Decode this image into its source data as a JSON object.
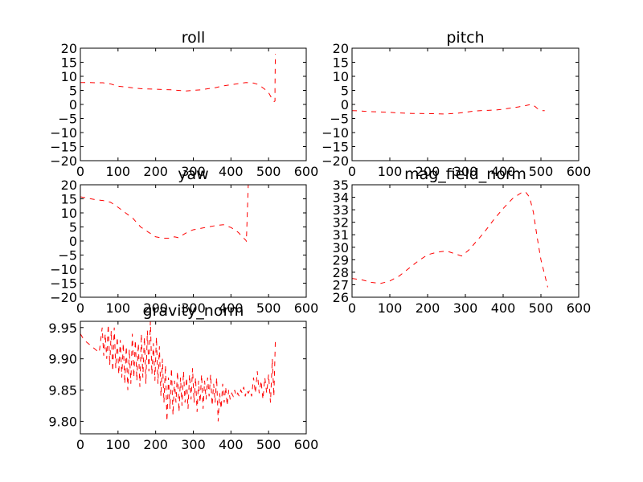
{
  "figure": {
    "background": "#ffffff"
  },
  "chart_data": [
    {
      "type": "line",
      "title": "roll",
      "xlabel": "",
      "ylabel": "",
      "xlim": [
        0,
        600
      ],
      "ylim": [
        -20,
        20
      ],
      "x_ticks": [
        0,
        100,
        200,
        300,
        400,
        500,
        600
      ],
      "y_ticks": [
        -20,
        -15,
        -10,
        -5,
        0,
        5,
        10,
        15,
        20
      ],
      "y_tick_labels": [
        "−20",
        "−15",
        "−10",
        "−5",
        "0",
        "5",
        "10",
        "15",
        "20"
      ],
      "grid": false,
      "series": [
        {
          "color": "#ff0000",
          "style": "dashed",
          "x": [
            0,
            20,
            40,
            60,
            80,
            100,
            120,
            140,
            160,
            180,
            200,
            220,
            240,
            260,
            280,
            300,
            320,
            340,
            360,
            380,
            400,
            420,
            440,
            460,
            470,
            480,
            490,
            500,
            505,
            510,
            515,
            517,
            517,
            518
          ],
          "y": [
            7.8,
            7.8,
            7.7,
            7.7,
            7.3,
            6.5,
            6.2,
            5.9,
            5.6,
            5.5,
            5.4,
            5.3,
            5.2,
            5.0,
            4.8,
            5.0,
            5.2,
            5.6,
            6.0,
            6.6,
            7.0,
            7.4,
            7.8,
            7.6,
            7.2,
            6.4,
            5.4,
            4.2,
            3.0,
            1.8,
            1.0,
            1.2,
            6.0,
            18.0
          ]
        }
      ]
    },
    {
      "type": "line",
      "title": "pitch",
      "xlabel": "",
      "ylabel": "",
      "xlim": [
        0,
        600
      ],
      "ylim": [
        -20,
        20
      ],
      "x_ticks": [
        0,
        100,
        200,
        300,
        400,
        500,
        600
      ],
      "y_ticks": [
        -20,
        -15,
        -10,
        -5,
        0,
        5,
        10,
        15,
        20
      ],
      "y_tick_labels": [
        "−20",
        "−15",
        "−10",
        "−5",
        "0",
        "5",
        "10",
        "15",
        "20"
      ],
      "grid": false,
      "series": [
        {
          "color": "#ff0000",
          "style": "dashed",
          "x": [
            0,
            20,
            40,
            60,
            80,
            100,
            120,
            140,
            160,
            180,
            200,
            220,
            240,
            260,
            280,
            300,
            320,
            340,
            360,
            380,
            400,
            420,
            440,
            460,
            470,
            475,
            480,
            485,
            490,
            495,
            500,
            505,
            510
          ],
          "y": [
            -2.2,
            -2.3,
            -2.5,
            -2.6,
            -2.7,
            -2.8,
            -3.0,
            -3.1,
            -3.2,
            -3.2,
            -3.3,
            -3.3,
            -3.4,
            -3.3,
            -3.1,
            -2.8,
            -2.4,
            -2.2,
            -2.1,
            -2.0,
            -1.7,
            -1.3,
            -0.9,
            -0.4,
            -0.1,
            0.0,
            -0.3,
            -0.8,
            -1.4,
            -1.8,
            -2.1,
            -2.2,
            -2.2
          ]
        }
      ]
    },
    {
      "type": "line",
      "title": "yaw",
      "xlabel": "",
      "ylabel": "",
      "xlim": [
        0,
        600
      ],
      "ylim": [
        -20,
        20
      ],
      "x_ticks": [
        0,
        100,
        200,
        300,
        400,
        500,
        600
      ],
      "y_ticks": [
        -20,
        -15,
        -10,
        -5,
        0,
        5,
        10,
        15,
        20
      ],
      "y_tick_labels": [
        "−20",
        "−15",
        "−10",
        "−5",
        "0",
        "5",
        "10",
        "15",
        "20"
      ],
      "grid": false,
      "series": [
        {
          "color": "#ff0000",
          "style": "dashed",
          "x": [
            0,
            20,
            40,
            60,
            80,
            100,
            120,
            140,
            160,
            180,
            200,
            220,
            240,
            250,
            260,
            270,
            280,
            290,
            300,
            320,
            340,
            360,
            380,
            400,
            410,
            420,
            430,
            440,
            441,
            443,
            446
          ],
          "y": [
            15.7,
            15.2,
            14.7,
            14.4,
            13.8,
            12.0,
            10.0,
            8.0,
            5.0,
            3.2,
            1.5,
            1.0,
            1.0,
            1.5,
            1.2,
            2.0,
            2.8,
            3.5,
            4.0,
            4.5,
            5.0,
            5.5,
            5.8,
            4.8,
            4.0,
            3.0,
            1.5,
            0.2,
            -0.2,
            8.0,
            20.0
          ]
        }
      ]
    },
    {
      "type": "line",
      "title": "mag_field_norm",
      "xlabel": "",
      "ylabel": "",
      "xlim": [
        0,
        600
      ],
      "ylim": [
        26,
        35
      ],
      "x_ticks": [
        0,
        100,
        200,
        300,
        400,
        500,
        600
      ],
      "y_ticks": [
        26,
        27,
        28,
        29,
        30,
        31,
        32,
        33,
        34,
        35
      ],
      "y_tick_labels": [
        "26",
        "27",
        "28",
        "29",
        "30",
        "31",
        "32",
        "33",
        "34",
        "35"
      ],
      "grid": false,
      "series": [
        {
          "color": "#ff0000",
          "style": "dashed",
          "x": [
            0,
            25,
            50,
            75,
            100,
            125,
            150,
            175,
            200,
            225,
            250,
            270,
            290,
            310,
            330,
            350,
            375,
            400,
            425,
            450,
            460,
            470,
            480,
            490,
            500,
            510,
            518
          ],
          "y": [
            27.5,
            27.4,
            27.2,
            27.1,
            27.3,
            27.7,
            28.3,
            28.9,
            29.4,
            29.6,
            29.7,
            29.5,
            29.3,
            29.8,
            30.5,
            31.2,
            32.2,
            33.1,
            33.9,
            34.4,
            34.4,
            34.0,
            32.8,
            30.8,
            29.0,
            27.8,
            26.8
          ]
        }
      ]
    },
    {
      "type": "line",
      "title": "gravity_norm",
      "xlabel": "",
      "ylabel": "",
      "xlim": [
        0,
        600
      ],
      "ylim": [
        9.78,
        9.96
      ],
      "x_ticks": [
        0,
        100,
        200,
        300,
        400,
        500,
        600
      ],
      "y_ticks": [
        9.8,
        9.85,
        9.9,
        9.95
      ],
      "y_tick_labels": [
        "9.80",
        "9.85",
        "9.90",
        "9.95"
      ],
      "grid": false,
      "series": [
        {
          "color": "#ff0000",
          "style": "dashed",
          "x": [
            0,
            10,
            20,
            30,
            40,
            50,
            58,
            62,
            66,
            70,
            74,
            78,
            82,
            86,
            90,
            94,
            98,
            102,
            106,
            110,
            114,
            118,
            122,
            126,
            130,
            134,
            138,
            142,
            146,
            150,
            154,
            158,
            162,
            166,
            170,
            174,
            178,
            182,
            186,
            190,
            194,
            198,
            202,
            206,
            210,
            214,
            218,
            222,
            226,
            230,
            234,
            238,
            242,
            246,
            250,
            254,
            258,
            262,
            266,
            270,
            274,
            278,
            282,
            286,
            290,
            294,
            298,
            302,
            306,
            310,
            314,
            318,
            322,
            326,
            330,
            334,
            338,
            342,
            346,
            350,
            354,
            358,
            362,
            366,
            370,
            374,
            378,
            382,
            386,
            390,
            394,
            398,
            402,
            406,
            410,
            414,
            418,
            422,
            426,
            430,
            434,
            438,
            442,
            446,
            450,
            455,
            460,
            465,
            470,
            475,
            480,
            485,
            490,
            495,
            500,
            505,
            510,
            514,
            518
          ],
          "y": [
            9.94,
            9.93,
            9.925,
            9.92,
            9.915,
            9.91,
            9.95,
            9.905,
            9.94,
            9.9,
            9.955,
            9.89,
            9.945,
            9.88,
            9.95,
            9.885,
            9.935,
            9.875,
            9.93,
            9.87,
            9.925,
            9.86,
            9.92,
            9.85,
            9.915,
            9.86,
            9.94,
            9.87,
            9.93,
            9.865,
            9.925,
            9.855,
            9.94,
            9.87,
            9.935,
            9.86,
            9.945,
            9.88,
            9.96,
            9.875,
            9.925,
            9.865,
            9.935,
            9.86,
            9.92,
            9.84,
            9.9,
            9.83,
            9.89,
            9.8,
            9.87,
            9.82,
            9.885,
            9.81,
            9.865,
            9.83,
            9.88,
            9.815,
            9.87,
            9.825,
            9.88,
            9.83,
            9.87,
            9.82,
            9.875,
            9.835,
            9.885,
            9.83,
            9.87,
            9.815,
            9.865,
            9.83,
            9.875,
            9.82,
            9.865,
            9.835,
            9.87,
            9.84,
            9.875,
            9.825,
            9.86,
            9.83,
            9.87,
            9.8,
            9.845,
            9.82,
            9.86,
            9.83,
            9.855,
            9.825,
            9.85,
            9.835,
            9.845,
            9.84,
            9.85,
            9.84,
            9.845,
            9.84,
            9.85,
            9.845,
            9.855,
            9.84,
            9.85,
            9.845,
            9.85,
            9.84,
            9.87,
            9.845,
            9.88,
            9.845,
            9.865,
            9.835,
            9.87,
            9.845,
            9.875,
            9.83,
            9.9,
            9.84,
            9.93
          ]
        }
      ]
    }
  ]
}
